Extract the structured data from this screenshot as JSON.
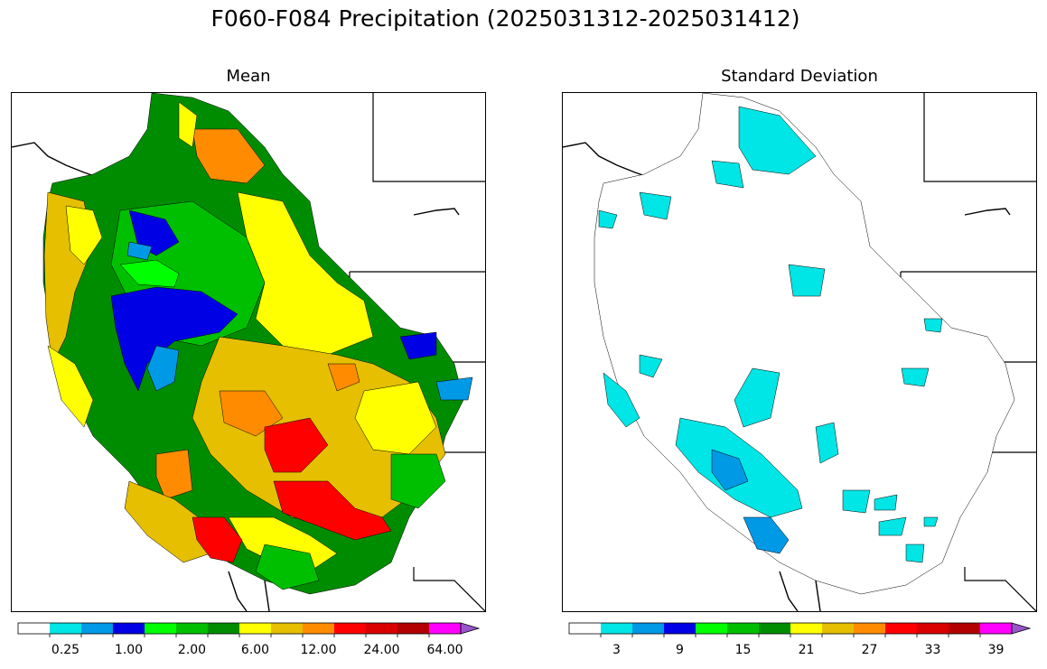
{
  "title": "F060-F084 Precipitation (2025031312-2025031412)",
  "panels": {
    "mean": {
      "title": "Mean",
      "colorbar": {
        "colors": [
          "#ffffff",
          "#00e5e5",
          "#0099e5",
          "#0000e5",
          "#00ff00",
          "#00bf00",
          "#008c00",
          "#ffff00",
          "#e5bf00",
          "#ff8c00",
          "#ff0000",
          "#d80000",
          "#b20000",
          "#ff00ff",
          "#9955cc"
        ],
        "extend": "max",
        "tick_labels": [
          "0.25",
          "1.00",
          "2.00",
          "6.00",
          "12.00",
          "24.00",
          "64.00"
        ],
        "label_positions": [
          1,
          3,
          5,
          7,
          9,
          11,
          13
        ]
      }
    },
    "stdev": {
      "title": "Standard Deviation",
      "colorbar": {
        "colors": [
          "#ffffff",
          "#00e5e5",
          "#0099e5",
          "#0000e5",
          "#00ff00",
          "#00bf00",
          "#008c00",
          "#ffff00",
          "#e5bf00",
          "#ff8c00",
          "#ff0000",
          "#d80000",
          "#b20000",
          "#ff00ff",
          "#9955cc"
        ],
        "extend": "max",
        "tick_labels": [
          "3",
          "9",
          "15",
          "21",
          "27",
          "33",
          "39"
        ],
        "label_positions": [
          1,
          3,
          5,
          7,
          9,
          11,
          13
        ]
      }
    }
  }
}
